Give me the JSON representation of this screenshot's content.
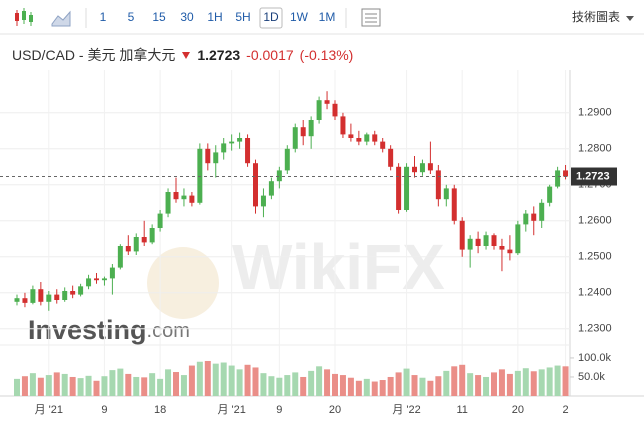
{
  "toolbar": {
    "timeframes": [
      "1",
      "5",
      "15",
      "30",
      "1H",
      "5H",
      "1D",
      "1W",
      "1M"
    ],
    "active": "1D",
    "right_link": "技術圖表"
  },
  "header": {
    "instrument": "USD/CAD - 美元 加拿大元",
    "change": -0.0017,
    "change_percent": "(-0.13%)"
  },
  "chart_data": {
    "type": "candlestick",
    "categories": [
      null,
      null,
      null,
      null,
      "月 '21",
      null,
      null,
      null,
      null,
      null,
      null,
      "9",
      null,
      null,
      null,
      null,
      null,
      null,
      "18",
      null,
      null,
      null,
      null,
      null,
      null,
      null,
      null,
      "月 '21",
      null,
      null,
      null,
      null,
      null,
      "9",
      null,
      null,
      null,
      null,
      null,
      null,
      "20",
      null,
      null,
      null,
      null,
      null,
      null,
      null,
      null,
      "月 '22",
      null,
      null,
      null,
      null,
      null,
      null,
      "11",
      null,
      null,
      null,
      null,
      null,
      null,
      "20",
      null,
      null,
      null,
      null,
      null,
      "2"
    ],
    "open": [
      1.2375,
      1.2385,
      1.2372,
      1.241,
      1.2375,
      1.2395,
      1.238,
      1.2405,
      1.2395,
      1.2418,
      1.244,
      1.2435,
      1.244,
      1.247,
      1.253,
      1.2515,
      1.2555,
      1.254,
      1.258,
      1.262,
      1.268,
      1.266,
      1.267,
      1.265,
      1.28,
      1.276,
      1.279,
      1.2815,
      1.282,
      1.283,
      1.276,
      1.264,
      1.267,
      1.271,
      1.274,
      1.28,
      1.286,
      1.2835,
      1.288,
      1.2935,
      1.2925,
      1.289,
      1.284,
      1.283,
      1.282,
      1.284,
      1.282,
      1.28,
      1.275,
      1.263,
      1.275,
      1.2735,
      1.276,
      1.274,
      1.266,
      1.269,
      1.26,
      1.252,
      1.255,
      1.253,
      1.256,
      1.253,
      1.252,
      1.251,
      1.259,
      1.262,
      1.26,
      1.265,
      1.2695,
      1.274
    ],
    "high": [
      1.2395,
      1.24,
      1.242,
      1.243,
      1.2405,
      1.241,
      1.2415,
      1.242,
      1.2425,
      1.245,
      1.2455,
      1.2445,
      1.248,
      1.2535,
      1.256,
      1.2565,
      1.26,
      1.259,
      1.263,
      1.269,
      1.272,
      1.269,
      1.268,
      1.2815,
      1.2815,
      1.281,
      1.283,
      1.284,
      1.2845,
      1.284,
      1.277,
      1.269,
      1.272,
      1.275,
      1.281,
      1.287,
      1.288,
      1.289,
      1.2945,
      1.296,
      1.2935,
      1.29,
      1.287,
      1.285,
      1.2845,
      1.285,
      1.283,
      1.281,
      1.276,
      1.276,
      1.278,
      1.277,
      1.282,
      1.2755,
      1.27,
      1.27,
      1.261,
      1.256,
      1.257,
      1.257,
      1.2565,
      1.255,
      1.256,
      1.26,
      1.263,
      1.264,
      1.266,
      1.27,
      1.275,
      1.2755
    ],
    "low": [
      1.2365,
      1.236,
      1.2368,
      1.2365,
      1.235,
      1.237,
      1.2375,
      1.2385,
      1.239,
      1.241,
      1.2425,
      1.242,
      1.2395,
      1.2465,
      1.2505,
      1.2505,
      1.253,
      1.2535,
      1.257,
      1.261,
      1.265,
      1.264,
      1.264,
      1.2645,
      1.274,
      1.272,
      1.277,
      1.2795,
      1.28,
      1.275,
      1.262,
      1.261,
      1.266,
      1.269,
      1.273,
      1.279,
      1.281,
      1.28,
      1.287,
      1.291,
      1.288,
      1.283,
      1.282,
      1.281,
      1.281,
      1.281,
      1.279,
      1.274,
      1.262,
      1.2625,
      1.272,
      1.2725,
      1.273,
      1.264,
      1.264,
      1.259,
      1.25,
      1.247,
      1.251,
      1.252,
      1.252,
      1.246,
      1.249,
      1.2505,
      1.257,
      1.256,
      1.258,
      1.264,
      1.269,
      1.2715
    ],
    "close": [
      1.2385,
      1.2372,
      1.241,
      1.2375,
      1.2395,
      1.238,
      1.2405,
      1.2395,
      1.2418,
      1.244,
      1.2435,
      1.244,
      1.247,
      1.253,
      1.2515,
      1.2555,
      1.254,
      1.258,
      1.262,
      1.268,
      1.266,
      1.267,
      1.265,
      1.28,
      1.276,
      1.279,
      1.2815,
      1.282,
      1.283,
      1.276,
      1.264,
      1.267,
      1.271,
      1.274,
      1.28,
      1.286,
      1.2835,
      1.288,
      1.2935,
      1.2925,
      1.289,
      1.284,
      1.283,
      1.282,
      1.284,
      1.282,
      1.28,
      1.275,
      1.263,
      1.275,
      1.2735,
      1.276,
      1.274,
      1.266,
      1.269,
      1.26,
      1.252,
      1.255,
      1.253,
      1.256,
      1.253,
      1.252,
      1.251,
      1.259,
      1.262,
      1.26,
      1.265,
      1.2695,
      1.274,
      1.2723
    ],
    "up_color": "#4caf50",
    "down_color": "#d32f2f",
    "volume_up_color": "#a6d8b0",
    "volume_down_color": "#ea8e88",
    "ylim": [
      1.2255,
      1.3005
    ],
    "yticks": [
      {
        "value": 1.23,
        "label": "1.2300"
      },
      {
        "value": 1.24,
        "label": "1.2400"
      },
      {
        "value": 1.25,
        "label": "1.2500"
      },
      {
        "value": 1.26,
        "label": "1.2600"
      },
      {
        "value": 1.27,
        "label": "1.2700"
      },
      {
        "value": 1.28,
        "label": "1.2800"
      },
      {
        "value": 1.29,
        "label": "1.2900"
      }
    ],
    "grid": true,
    "last_price": 1.2723,
    "volume": {
      "values": [
        45000,
        52000,
        60000,
        48000,
        55000,
        62000,
        58000,
        50000,
        47000,
        53000,
        40000,
        52000,
        68000,
        72000,
        58000,
        50000,
        49000,
        60000,
        45000,
        70000,
        63000,
        55000,
        80000,
        90000,
        92000,
        85000,
        88000,
        80000,
        70000,
        82000,
        75000,
        60000,
        52000,
        48000,
        55000,
        62000,
        50000,
        66000,
        78000,
        70000,
        58000,
        55000,
        48000,
        40000,
        45000,
        38000,
        42000,
        50000,
        62000,
        72000,
        55000,
        48000,
        40000,
        52000,
        66000,
        78000,
        82000,
        60000,
        55000,
        50000,
        62000,
        70000,
        58000,
        66000,
        73000,
        65000,
        70000,
        75000,
        80000,
        78000
      ],
      "ylim": [
        0,
        134000
      ],
      "yticks": [
        {
          "value": 50000,
          "label": "50.0k"
        },
        {
          "value": 100000,
          "label": "100.0k"
        }
      ]
    },
    "watermarks": [
      "WikiFX",
      "Investing",
      ".com"
    ]
  }
}
